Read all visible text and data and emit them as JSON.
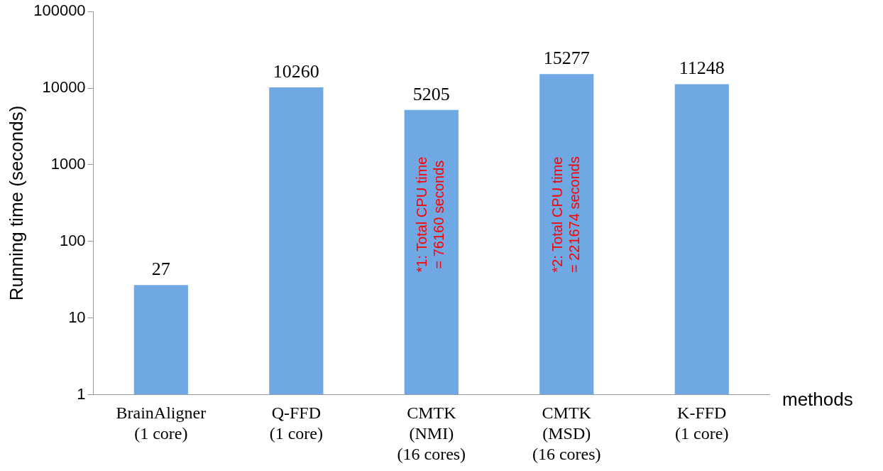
{
  "chart_data": {
    "type": "bar",
    "xlabel": "methods",
    "ylabel": "Running time (seconds)",
    "categories": [
      "BrainAligner\n(1 core)",
      "Q-FFD\n(1 core)",
      "CMTK\n(NMI)\n(16 cores)",
      "CMTK\n(MSD)\n(16 cores)",
      "K-FFD\n(1 core)"
    ],
    "values": [
      27,
      10260,
      5205,
      15277,
      11248
    ],
    "color": "#6fa8e3",
    "log": "y",
    "ylim": [
      1,
      100000
    ],
    "yticks": [
      1,
      10,
      100,
      1000,
      10000,
      100000
    ],
    "data_labels": true,
    "grid": false,
    "legend": false,
    "annotations": [
      "*1: Total CPU time\n= 76160 seconds",
      "*2: Total CPU time\n= 221674 seconds"
    ]
  }
}
